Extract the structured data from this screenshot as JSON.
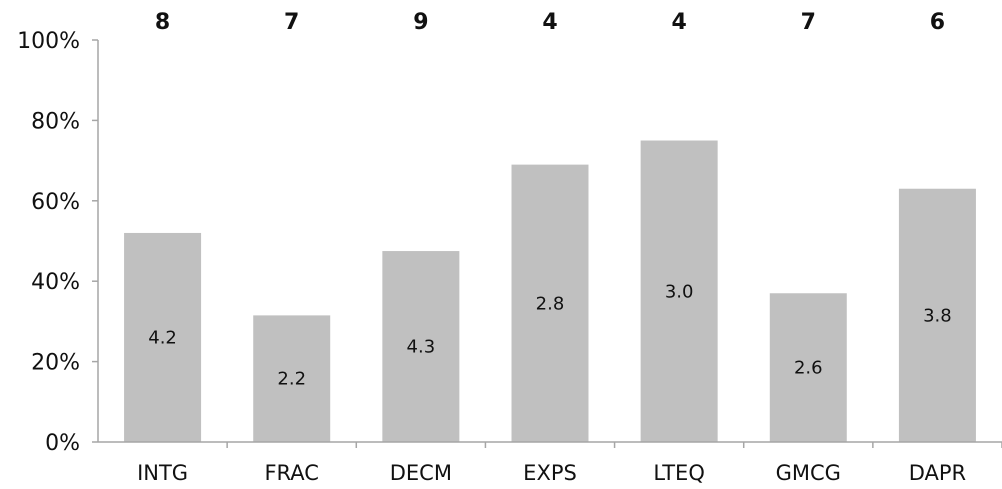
{
  "chart_data": {
    "type": "bar",
    "title": "",
    "xlabel": "",
    "ylabel": "",
    "categories": [
      "INTG",
      "FRAC",
      "DECM",
      "EXPS",
      "LTEQ",
      "GMCG",
      "DAPR"
    ],
    "values": [
      52,
      31.5,
      47.5,
      69,
      75,
      37,
      63
    ],
    "bar_labels": [
      "4.2",
      "2.2",
      "4.3",
      "2.8",
      "3.0",
      "2.6",
      "3.8"
    ],
    "top_labels": [
      "8",
      "7",
      "9",
      "4",
      "4",
      "7",
      "6"
    ],
    "ylim": [
      0,
      100
    ],
    "yticks": [
      0,
      20,
      40,
      60,
      80,
      100
    ],
    "ytick_labels": [
      "0%",
      "20%",
      "40%",
      "60%",
      "80%",
      "100%"
    ],
    "grid": false,
    "bar_color": "#c0c0c0",
    "axis_color": "#a6a6a6"
  }
}
